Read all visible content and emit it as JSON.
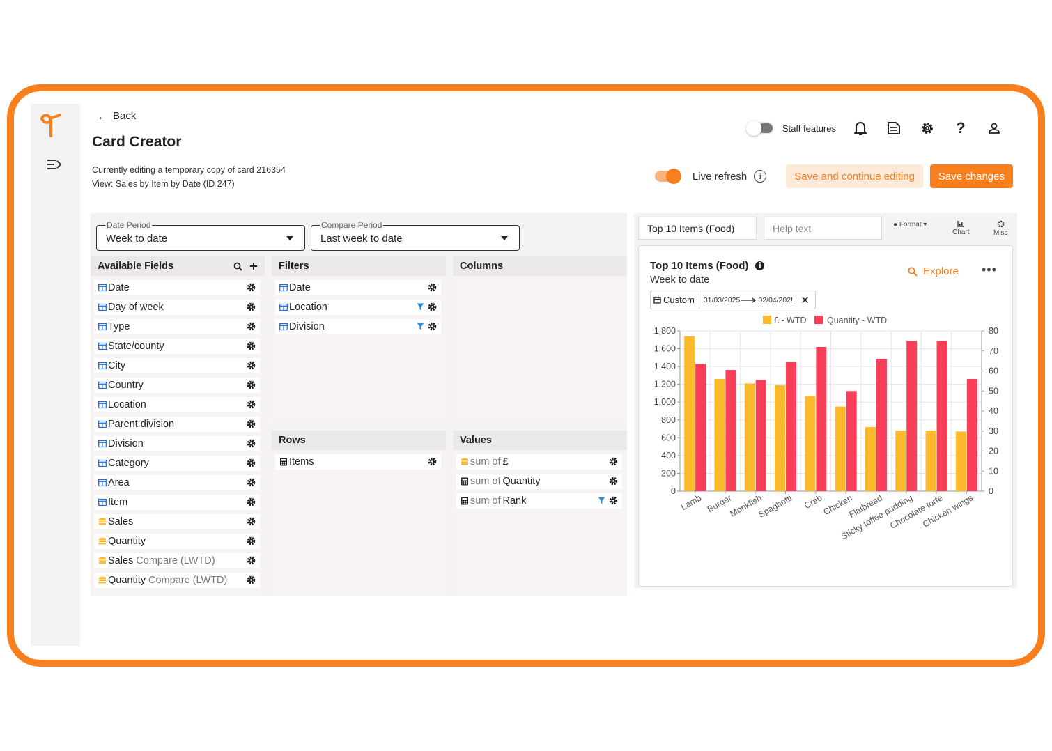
{
  "header": {
    "back_label": "Back",
    "title": "Card Creator",
    "subtitle_editing": "Currently editing a temporary copy of card 216354",
    "subtitle_view": "View: Sales by Item by Date (ID 247)"
  },
  "topbar": {
    "staff_features_label": "Staff features",
    "staff_features_on": false
  },
  "actions": {
    "live_refresh_label": "Live refresh",
    "live_refresh_on": true,
    "save_continue_label": "Save and continue editing",
    "save_label": "Save changes"
  },
  "period": {
    "date_label": "Date Period",
    "date_value": "Week to date",
    "compare_label": "Compare Period",
    "compare_value": "Last week to date"
  },
  "available_fields": {
    "title": "Available Fields",
    "items": [
      {
        "label": "Date",
        "icon": "table-icon"
      },
      {
        "label": "Day of week",
        "icon": "table-icon"
      },
      {
        "label": "Type",
        "icon": "table-icon"
      },
      {
        "label": "State/county",
        "icon": "table-icon"
      },
      {
        "label": "City",
        "icon": "table-icon"
      },
      {
        "label": "Country",
        "icon": "table-icon"
      },
      {
        "label": "Location",
        "icon": "table-icon"
      },
      {
        "label": "Parent division",
        "icon": "table-icon"
      },
      {
        "label": "Division",
        "icon": "table-icon"
      },
      {
        "label": "Category",
        "icon": "table-icon"
      },
      {
        "label": "Area",
        "icon": "table-icon"
      },
      {
        "label": "Item",
        "icon": "table-icon"
      },
      {
        "label": "Sales",
        "icon": "coins-icon"
      },
      {
        "label": "Quantity",
        "icon": "coins-icon"
      },
      {
        "label": "Sales",
        "suffix": "Compare (LWTD)",
        "icon": "coins-icon"
      },
      {
        "label": "Quantity",
        "suffix": "Compare (LWTD)",
        "icon": "coins-icon"
      }
    ]
  },
  "filters": {
    "title": "Filters",
    "items": [
      {
        "label": "Date",
        "filtered": false
      },
      {
        "label": "Location",
        "filtered": true
      },
      {
        "label": "Division",
        "filtered": true
      }
    ]
  },
  "columns": {
    "title": "Columns"
  },
  "rows": {
    "title": "Rows",
    "items": [
      {
        "label": "Items"
      }
    ]
  },
  "values": {
    "title": "Values",
    "items": [
      {
        "prefix": "sum of",
        "label": "£",
        "icon": "coins-icon",
        "filtered": false
      },
      {
        "prefix": "sum of",
        "label": "Quantity",
        "icon": "calculator-icon",
        "filtered": false
      },
      {
        "prefix": "sum of",
        "label": "Rank",
        "icon": "calculator-icon",
        "filtered": true
      }
    ]
  },
  "preview": {
    "card_title_input": "Top 10 Items (Food)",
    "help_placeholder": "Help text",
    "format_label": "Format",
    "chart_label": "Chart",
    "misc_label": "Misc",
    "card_title": "Top 10 Items (Food)",
    "card_subtitle": "Week to date",
    "explore_label": "Explore",
    "custom_label": "Custom",
    "date_from": "31/03/2025",
    "date_to": "02/04/202!"
  },
  "colors": {
    "accent": "#f77f1e",
    "series_gbp": "#fbb92b",
    "series_qty": "#f93f57"
  },
  "chart_data": {
    "type": "bar",
    "categories": [
      "Lamb",
      "Burger",
      "Monkfish",
      "Spaghetti",
      "Crab",
      "Chicken",
      "Flatbread",
      "Sticky toffee pudding",
      "Chocolate torte",
      "Chicken wings"
    ],
    "series": [
      {
        "name": "£ - WTD",
        "axis": "left",
        "values": [
          1740,
          1260,
          1210,
          1190,
          1070,
          950,
          720,
          680,
          680,
          670
        ]
      },
      {
        "name": "Quantity - WTD",
        "axis": "right",
        "values": [
          63.5,
          60.5,
          55.5,
          64.5,
          72,
          50,
          66,
          75,
          75,
          56
        ]
      }
    ],
    "ylim_left": [
      0,
      1800
    ],
    "yticks_left": [
      0,
      200,
      400,
      600,
      800,
      1000,
      1200,
      1400,
      1600,
      1800
    ],
    "yticks_left_labels": [
      "0",
      "200",
      "400",
      "600",
      "800",
      "1,000",
      "1,200",
      "1,400",
      "1,600",
      "1,800"
    ],
    "ylim_right": [
      0,
      80
    ],
    "yticks_right": [
      0,
      10,
      20,
      30,
      40,
      50,
      60,
      70,
      80
    ],
    "grid": true,
    "legend": "top-center"
  }
}
